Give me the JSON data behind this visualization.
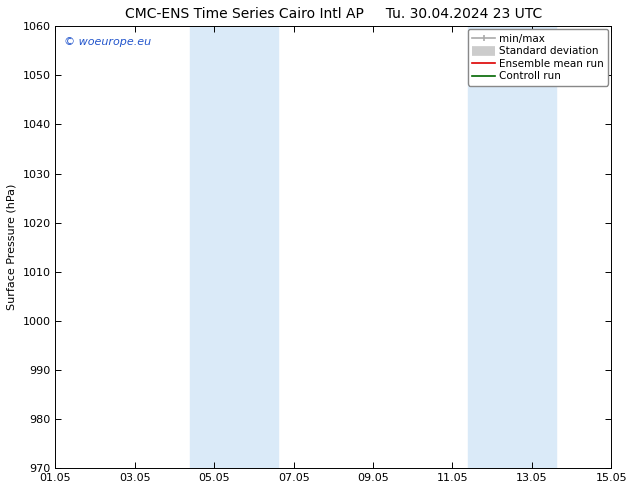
{
  "title_left": "CMC-ENS Time Series Cairo Intl AP",
  "title_right": "Tu. 30.04.2024 23 UTC",
  "ylabel": "Surface Pressure (hPa)",
  "ylim": [
    970,
    1060
  ],
  "yticks": [
    970,
    980,
    990,
    1000,
    1010,
    1020,
    1030,
    1040,
    1050,
    1060
  ],
  "xlim_start": 0,
  "xlim_end": 14,
  "xtick_labels": [
    "01.05",
    "03.05",
    "05.05",
    "07.05",
    "09.05",
    "11.05",
    "13.05",
    "15.05"
  ],
  "xtick_positions": [
    0,
    2,
    4,
    6,
    8,
    10,
    12,
    14
  ],
  "shaded_bands": [
    {
      "x_start": 3.4,
      "x_end": 5.6,
      "color": "#daeaf8"
    },
    {
      "x_start": 10.4,
      "x_end": 12.6,
      "color": "#daeaf8"
    }
  ],
  "watermark_text": "© woeurope.eu",
  "watermark_color": "#2255cc",
  "legend_entries": [
    {
      "label": "min/max",
      "color": "#aaaaaa",
      "lw": 1.5
    },
    {
      "label": "Standard deviation",
      "color": "#cccccc",
      "lw": 6
    },
    {
      "label": "Ensemble mean run",
      "color": "#dd0000",
      "lw": 1.5
    },
    {
      "label": "Controll run",
      "color": "#006600",
      "lw": 1.5
    }
  ],
  "bg_color": "#ffffff",
  "plot_bg_color": "#ffffff",
  "title_fontsize": 10,
  "axis_label_fontsize": 8,
  "tick_fontsize": 8,
  "legend_fontsize": 7.5
}
